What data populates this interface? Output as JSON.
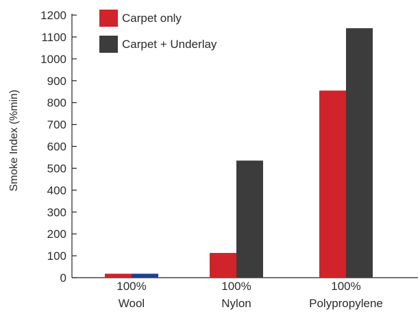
{
  "chart_data": {
    "type": "bar",
    "title": "",
    "xlabel": "",
    "ylabel": "Smoke Index (%min)",
    "ylim": [
      0,
      1200
    ],
    "yticks": [
      0,
      100,
      200,
      300,
      400,
      500,
      600,
      700,
      800,
      900,
      1000,
      1100,
      1200
    ],
    "grid": false,
    "legend_position": "top-left",
    "categories": [
      {
        "line1": "100%",
        "line2": "Wool"
      },
      {
        "line1": "100%",
        "line2": "Nylon"
      },
      {
        "line1": "100%",
        "line2": "Polypropylene"
      }
    ],
    "series": [
      {
        "name": "Carpet only",
        "color": "#d0232a",
        "values": [
          18,
          113,
          855
        ]
      },
      {
        "name": "Carpet + Underlay",
        "color": "#3c3c3c",
        "values": [
          18,
          535,
          1140
        ]
      }
    ],
    "highlight": {
      "category_index": 0,
      "series_index": 1,
      "color": "#1f3f8f"
    }
  }
}
